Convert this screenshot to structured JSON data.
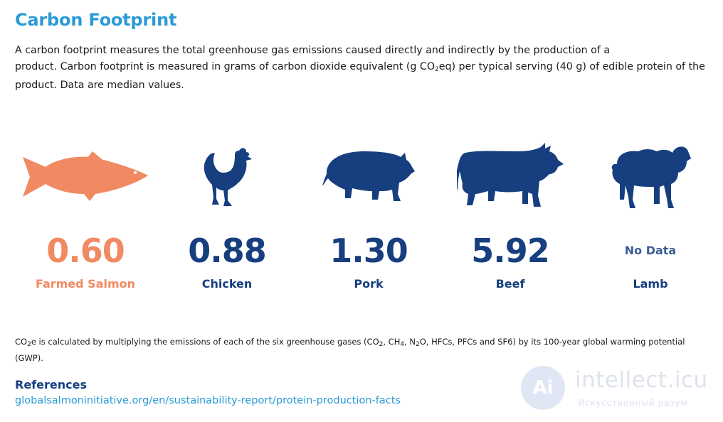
{
  "title": "Carbon Footprint",
  "intro": {
    "line1": "A carbon footprint measures the total greenhouse gas emissions caused directly and indirectly by the production of a",
    "line2a": "product. Carbon footprint is measured in grams of carbon dioxide equivalent (g CO",
    "line2_sub": "2",
    "line2b": "eq) per typical serving (40 g) of edible protein of the",
    "line3": "product. Data are median values."
  },
  "colors": {
    "title": "#2b9ad6",
    "navy": "#173f80",
    "salmon": "#f18a62"
  },
  "items": [
    {
      "icon": "salmon-icon",
      "value": "0.60",
      "label": "Farmed Salmon"
    },
    {
      "icon": "chicken-icon",
      "value": "0.88",
      "label": "Chicken"
    },
    {
      "icon": "pig-icon",
      "value": "1.30",
      "label": "Pork"
    },
    {
      "icon": "cow-icon",
      "value": "5.92",
      "label": "Beef"
    },
    {
      "icon": "sheep-icon",
      "value": "No Data",
      "label": "Lamb"
    }
  ],
  "footnote": {
    "t1": "CO",
    "s1": "2",
    "t2": "e is calculated by multiplying the emissions of each of the six greenhouse gases (CO",
    "s2": "2",
    "t3": ", CH",
    "s3": "4",
    "t4": ", N",
    "s4": "2",
    "t5": "O, HFCs, PFCs and SF6) by its 100-year global warming potential (GWP)."
  },
  "references": {
    "heading": "References",
    "link": "globalsalmoninitiative.org/en/sustainability-report/protein-production-facts"
  },
  "watermark": {
    "logo": "Ai",
    "name": "intellect.icu",
    "tagline": "Искусственный разум"
  }
}
